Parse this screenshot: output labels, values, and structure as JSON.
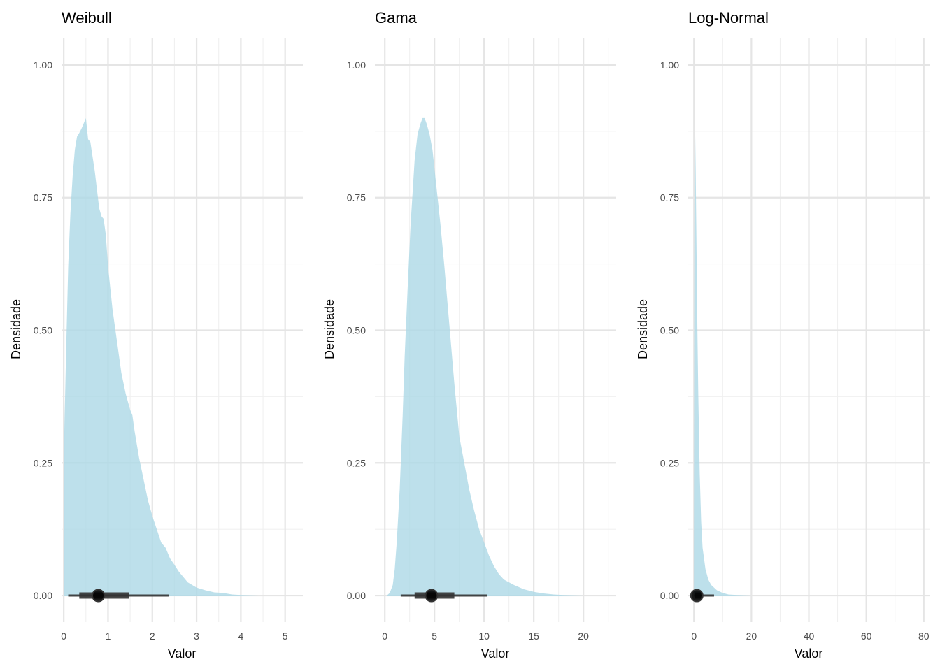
{
  "chart_data": [
    {
      "type": "area",
      "title": "Weibull",
      "xlabel": "Valor",
      "ylabel": "Densidade",
      "xlim": [
        -0.05,
        5.4
      ],
      "ylim": [
        -0.05,
        1.05
      ],
      "x_ticks": [
        0,
        1,
        2,
        3,
        4,
        5
      ],
      "x_tick_labels": [
        "0",
        "1",
        "2",
        "3",
        "4",
        "5"
      ],
      "y_ticks": [
        0,
        0.25,
        0.5,
        0.75,
        1.0
      ],
      "y_tick_labels": [
        "0.00",
        "0.25",
        "0.50",
        "0.75",
        "1.00"
      ],
      "grid": true,
      "fill_color": "#add8e6",
      "density": {
        "x": [
          0,
          0.05,
          0.1,
          0.15,
          0.2,
          0.25,
          0.3,
          0.35,
          0.4,
          0.45,
          0.5,
          0.55,
          0.6,
          0.7,
          0.8,
          0.85,
          0.9,
          0.95,
          1.0,
          1.1,
          1.2,
          1.3,
          1.4,
          1.5,
          1.55,
          1.6,
          1.7,
          1.8,
          1.9,
          2.0,
          2.1,
          2.2,
          2.3,
          2.4,
          2.5,
          2.6,
          2.7,
          2.8,
          3.0,
          3.2,
          3.4,
          3.6,
          3.8,
          4.0,
          4.2,
          4.4
        ],
        "y": [
          0.26,
          0.45,
          0.62,
          0.72,
          0.79,
          0.84,
          0.865,
          0.872,
          0.88,
          0.89,
          0.9,
          0.86,
          0.855,
          0.8,
          0.73,
          0.715,
          0.71,
          0.68,
          0.62,
          0.54,
          0.48,
          0.42,
          0.38,
          0.35,
          0.34,
          0.31,
          0.26,
          0.22,
          0.18,
          0.15,
          0.125,
          0.1,
          0.09,
          0.07,
          0.058,
          0.045,
          0.035,
          0.025,
          0.015,
          0.01,
          0.006,
          0.005,
          0.002,
          0.001,
          0.0005,
          0
        ]
      },
      "interval": {
        "point": 0.78,
        "thick": [
          0.35,
          1.48
        ],
        "thin": [
          0.1,
          2.38
        ]
      }
    },
    {
      "type": "area",
      "title": "Gama",
      "xlabel": "Valor",
      "ylabel": "Densidade",
      "xlim": [
        -1,
        23.3
      ],
      "ylim": [
        -0.05,
        1.05
      ],
      "x_ticks": [
        0,
        5,
        10,
        15,
        20
      ],
      "x_tick_labels": [
        "0",
        "5",
        "10",
        "15",
        "20"
      ],
      "y_ticks": [
        0,
        0.25,
        0.5,
        0.75,
        1.0
      ],
      "y_tick_labels": [
        "0.00",
        "0.25",
        "0.50",
        "0.75",
        "1.00"
      ],
      "grid": true,
      "fill_color": "#add8e6",
      "density": {
        "x": [
          0.2,
          0.5,
          0.8,
          1.0,
          1.2,
          1.5,
          1.8,
          2.0,
          2.3,
          2.6,
          3.0,
          3.3,
          3.6,
          3.8,
          4.0,
          4.2,
          4.5,
          4.8,
          5.2,
          5.6,
          6.0,
          6.5,
          7.0,
          7.5,
          8.0,
          8.5,
          9.0,
          9.5,
          10.0,
          10.5,
          11.0,
          11.5,
          12.0,
          13.0,
          14.0,
          15.0,
          16.0,
          17.0,
          18.0,
          20.0
        ],
        "y": [
          0,
          0.005,
          0.02,
          0.05,
          0.1,
          0.2,
          0.34,
          0.45,
          0.58,
          0.7,
          0.82,
          0.87,
          0.89,
          0.9,
          0.9,
          0.89,
          0.87,
          0.84,
          0.77,
          0.7,
          0.62,
          0.51,
          0.4,
          0.3,
          0.25,
          0.2,
          0.16,
          0.125,
          0.1,
          0.075,
          0.055,
          0.04,
          0.03,
          0.02,
          0.012,
          0.007,
          0.004,
          0.002,
          0.001,
          0
        ]
      },
      "interval": {
        "point": 4.7,
        "thick": [
          3.0,
          7.0
        ],
        "thin": [
          1.6,
          10.3
        ]
      }
    },
    {
      "type": "area",
      "title": "Log-Normal",
      "xlabel": "Valor",
      "ylabel": "Densidade",
      "xlim": [
        -2,
        82
      ],
      "ylim": [
        -0.05,
        1.05
      ],
      "x_ticks": [
        0,
        20,
        40,
        60,
        80
      ],
      "x_tick_labels": [
        "0",
        "20",
        "40",
        "60",
        "80"
      ],
      "y_ticks": [
        0,
        0.25,
        0.5,
        0.75,
        1.0
      ],
      "y_tick_labels": [
        "0.00",
        "0.25",
        "0.50",
        "0.75",
        "1.00"
      ],
      "grid": true,
      "fill_color": "#add8e6",
      "density": {
        "x": [
          0,
          0.2,
          0.4,
          0.6,
          0.8,
          1.0,
          1.2,
          1.5,
          2.0,
          2.5,
          3.0,
          3.5,
          4.0,
          5.0,
          6.0,
          8.0,
          10.0,
          12.0,
          15.0,
          20.0
        ],
        "y": [
          0.1,
          0.9,
          0.88,
          0.8,
          0.7,
          0.6,
          0.5,
          0.38,
          0.23,
          0.14,
          0.09,
          0.07,
          0.05,
          0.03,
          0.02,
          0.01,
          0.005,
          0.002,
          0.001,
          0
        ]
      },
      "interval": {
        "point": 1.0,
        "thick": [
          0.4,
          2.4
        ],
        "thin": [
          0.1,
          7.0
        ]
      }
    }
  ]
}
